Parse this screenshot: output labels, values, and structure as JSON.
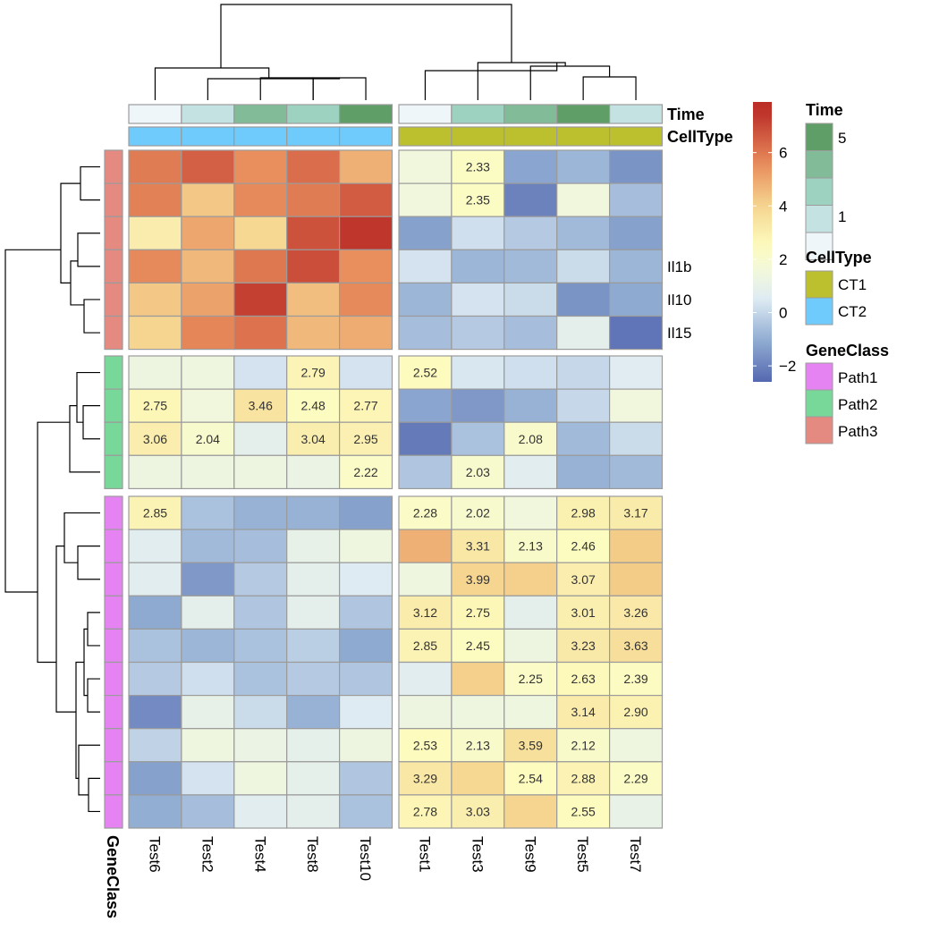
{
  "chart_data": {
    "type": "heatmap",
    "columns": [
      "Test6",
      "Test2",
      "Test4",
      "Test8",
      "Test10",
      "Test1",
      "Test3",
      "Test9",
      "Test5",
      "Test7"
    ],
    "column_split_after": 5,
    "row_split_sizes": [
      6,
      4,
      10
    ],
    "row_labels": [
      "",
      "",
      "",
      "Il1b",
      "Il10",
      "Il15",
      "",
      "",
      "",
      "",
      "",
      "",
      "",
      "",
      "",
      "",
      "",
      "",
      "",
      ""
    ],
    "values": [
      [
        5.9,
        6.5,
        5.5,
        6.2,
        4.8,
        1.5,
        2.33,
        -1.2,
        -0.8,
        -1.6
      ],
      [
        5.8,
        4.3,
        5.6,
        5.9,
        6.6,
        1.5,
        2.35,
        -2.0,
        1.5,
        -0.6
      ],
      [
        3.1,
        5.0,
        3.9,
        6.8,
        7.4,
        -1.3,
        0.2,
        -0.3,
        -0.7,
        -1.3
      ],
      [
        5.6,
        4.6,
        6.0,
        6.9,
        5.5,
        0.3,
        -0.8,
        -0.7,
        0.1,
        -0.8
      ],
      [
        4.3,
        5.1,
        7.2,
        4.5,
        5.6,
        -0.8,
        0.3,
        0.1,
        -1.6,
        -1.1
      ],
      [
        4.0,
        5.7,
        6.1,
        4.6,
        4.9,
        -0.6,
        -0.3,
        -0.6,
        0.8,
        -2.3
      ],
      [
        1.3,
        1.4,
        0.3,
        2.79,
        0.3,
        2.52,
        0.4,
        0.2,
        0.0,
        0.6
      ],
      [
        2.75,
        1.5,
        3.46,
        2.48,
        2.77,
        -1.2,
        -1.5,
        -0.9,
        0.0,
        1.5
      ],
      [
        3.06,
        2.04,
        0.8,
        3.04,
        2.95,
        -2.2,
        -0.5,
        2.08,
        -0.7,
        0.1
      ],
      [
        1.3,
        1.3,
        1.3,
        1.2,
        2.22,
        -0.4,
        2.03,
        0.7,
        -0.9,
        -0.7
      ],
      [
        2.85,
        -0.5,
        -0.9,
        -0.9,
        -1.3,
        2.28,
        2.02,
        1.5,
        2.98,
        3.17
      ],
      [
        0.7,
        -0.7,
        -0.6,
        1.0,
        1.4,
        4.8,
        3.31,
        2.13,
        2.46,
        4.2
      ],
      [
        0.7,
        -1.5,
        -0.3,
        0.8,
        0.5,
        1.4,
        3.99,
        4.1,
        3.07,
        4.2
      ],
      [
        -1.1,
        0.8,
        -0.4,
        0.8,
        -0.4,
        3.12,
        2.75,
        0.8,
        3.01,
        3.26
      ],
      [
        -0.5,
        -0.8,
        -0.5,
        -0.2,
        -1.1,
        2.85,
        2.45,
        1.3,
        3.23,
        3.63
      ],
      [
        -0.3,
        0.2,
        -0.5,
        -0.3,
        -0.4,
        0.7,
        4.1,
        2.25,
        2.63,
        2.39
      ],
      [
        -1.8,
        1.0,
        0.1,
        -0.9,
        0.5,
        1.3,
        1.4,
        1.4,
        3.14,
        2.9
      ],
      [
        -0.1,
        1.4,
        1.2,
        0.9,
        1.3,
        2.53,
        2.13,
        3.59,
        2.12,
        1.4
      ],
      [
        -1.3,
        0.3,
        1.4,
        0.9,
        -0.4,
        3.29,
        3.9,
        2.54,
        2.88,
        2.29
      ],
      [
        -1.0,
        -0.6,
        0.7,
        0.8,
        -0.5,
        2.78,
        3.03,
        4.0,
        2.55,
        1.1
      ]
    ],
    "cell_labels": [
      [
        "",
        "",
        "",
        "",
        "",
        "",
        "2.33",
        "",
        "",
        ""
      ],
      [
        "",
        "",
        "",
        "",
        "",
        "",
        "2.35",
        "",
        "",
        ""
      ],
      [
        "",
        "",
        "",
        "",
        "",
        "",
        "",
        "",
        "",
        ""
      ],
      [
        "",
        "",
        "",
        "",
        "",
        "",
        "",
        "",
        "",
        ""
      ],
      [
        "",
        "",
        "",
        "",
        "",
        "",
        "",
        "",
        "",
        ""
      ],
      [
        "",
        "",
        "",
        "",
        "",
        "",
        "",
        "",
        "",
        ""
      ],
      [
        "",
        "",
        "",
        "2.79",
        "",
        "2.52",
        "",
        "",
        "",
        ""
      ],
      [
        "2.75",
        "",
        "3.46",
        "2.48",
        "2.77",
        "",
        "",
        "",
        "",
        ""
      ],
      [
        "3.06",
        "2.04",
        "",
        "3.04",
        "2.95",
        "",
        "",
        "2.08",
        "",
        ""
      ],
      [
        "",
        "",
        "",
        "",
        "2.22",
        "",
        "2.03",
        "",
        "",
        ""
      ],
      [
        "2.85",
        "",
        "",
        "",
        "",
        "2.28",
        "2.02",
        "",
        "2.98",
        "3.17"
      ],
      [
        "",
        "",
        "",
        "",
        "",
        "",
        "3.31",
        "2.13",
        "2.46",
        ""
      ],
      [
        "",
        "",
        "",
        "",
        "",
        "",
        "3.99",
        "",
        "3.07",
        ""
      ],
      [
        "",
        "",
        "",
        "",
        "",
        "3.12",
        "2.75",
        "",
        "3.01",
        "3.26"
      ],
      [
        "",
        "",
        "",
        "",
        "",
        "2.85",
        "2.45",
        "",
        "3.23",
        "3.63"
      ],
      [
        "",
        "",
        "",
        "",
        "",
        "",
        "",
        "2.25",
        "2.63",
        "2.39"
      ],
      [
        "",
        "",
        "",
        "",
        "",
        "",
        "",
        "",
        "3.14",
        "2.90"
      ],
      [
        "",
        "",
        "",
        "",
        "",
        "2.53",
        "2.13",
        "3.59",
        "2.12",
        ""
      ],
      [
        "",
        "",
        "",
        "",
        "",
        "3.29",
        "",
        "2.54",
        "2.88",
        "2.29"
      ],
      [
        "",
        "",
        "",
        "",
        "",
        "2.78",
        "3.03",
        "",
        "2.55",
        ""
      ]
    ],
    "column_annotations": {
      "Time": [
        1,
        2,
        4,
        3,
        5,
        1,
        3,
        4,
        5,
        2
      ],
      "CellType": [
        "CT2",
        "CT2",
        "CT2",
        "CT2",
        "CT2",
        "CT1",
        "CT1",
        "CT1",
        "CT1",
        "CT1"
      ]
    },
    "row_annotation_name": "GeneClass",
    "row_annotations": [
      "Path3",
      "Path3",
      "Path3",
      "Path3",
      "Path3",
      "Path3",
      "Path2",
      "Path2",
      "Path2",
      "Path2",
      "Path1",
      "Path1",
      "Path1",
      "Path1",
      "Path1",
      "Path1",
      "Path1",
      "Path1",
      "Path1",
      "Path1"
    ],
    "annotation_colors": {
      "Time": [
        "#eef6fa",
        "#c5e2e2",
        "#9ed2c0",
        "#82bb97",
        "#5f9e66"
      ],
      "CellType": {
        "CT1": "#bcbf2e",
        "CT2": "#6ecbfb"
      },
      "GeneClass": {
        "Path1": "#e583f2",
        "Path2": "#78d89a",
        "Path3": "#e48a81"
      }
    },
    "color_scale": {
      "stops": [
        {
          "v": -2.6,
          "c": "#5468b0"
        },
        {
          "v": -1.0,
          "c": "#92aed3"
        },
        {
          "v": 0.5,
          "c": "#deebf3"
        },
        {
          "v": 1.5,
          "c": "#f1f7dd"
        },
        {
          "v": 2.5,
          "c": "#fdfcbf"
        },
        {
          "v": 4.0,
          "c": "#f5d58f"
        },
        {
          "v": 5.5,
          "c": "#e98f5e"
        },
        {
          "v": 7.6,
          "c": "#bb2d27"
        }
      ],
      "legend_range": [
        -2.6,
        7.9
      ],
      "legend_ticks": [
        -2,
        0,
        2,
        4,
        6
      ]
    },
    "annotation_titles": {
      "Time": "Time",
      "CellType": "CellType",
      "GeneClass": "GeneClass"
    },
    "legends": {
      "Time": {
        "title": "Time",
        "labels": [
          "5",
          "1"
        ]
      },
      "CellType": {
        "title": "CellType",
        "labels": [
          "CT1",
          "CT2"
        ]
      },
      "GeneClass": {
        "title": "GeneClass",
        "labels": [
          "Path1",
          "Path2",
          "Path3"
        ]
      }
    },
    "grid": true
  }
}
